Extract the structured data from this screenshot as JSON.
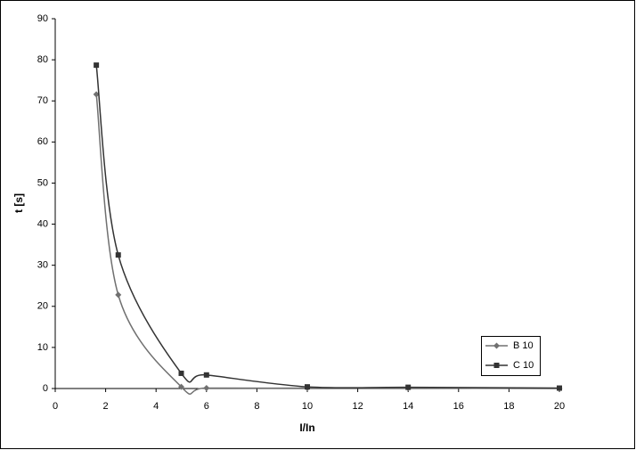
{
  "chart_data": {
    "type": "line",
    "x_label": "I/In",
    "y_label": "t [s]",
    "xlim": [
      0,
      20
    ],
    "xticks": [
      0,
      2,
      4,
      6,
      8,
      10,
      12,
      14,
      16,
      18,
      20
    ],
    "ylim": [
      0,
      90
    ],
    "yticks": [
      0,
      10,
      20,
      30,
      40,
      50,
      60,
      70,
      80,
      90
    ],
    "smooth": true,
    "series": [
      {
        "name": "B 10",
        "color": "#707070",
        "marker": "diamond",
        "x": [
          1.63,
          2.5,
          5,
          6,
          10,
          14,
          20
        ],
        "values": [
          71.6,
          22.8,
          0.4,
          0.1,
          0.1,
          0.1,
          0
        ]
      },
      {
        "name": "C 10",
        "color": "#333333",
        "marker": "square",
        "x": [
          1.63,
          2.5,
          5,
          6,
          10,
          14,
          20
        ],
        "values": [
          78.7,
          32.5,
          3.7,
          3.3,
          0.4,
          0.3,
          0.1
        ]
      }
    ]
  }
}
